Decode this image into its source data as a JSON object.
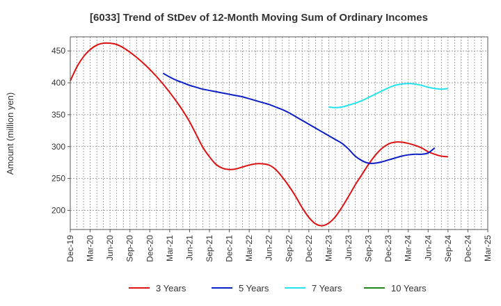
{
  "chart_data": {
    "type": "line",
    "title": "[6033]  Trend of StDev of 12-Month Moving Sum of Ordinary Incomes",
    "xlabel": "",
    "ylabel": "Amount (million yen)",
    "ylim": [
      170,
      472
    ],
    "yticks": [
      200,
      250,
      300,
      350,
      400,
      450
    ],
    "x_tick_labels": [
      "Dec-19",
      "Mar-20",
      "Jun-20",
      "Sep-20",
      "Dec-20",
      "Mar-21",
      "Jun-21",
      "Sep-21",
      "Dec-21",
      "Mar-22",
      "Jun-22",
      "Sep-22",
      "Dec-22",
      "Mar-23",
      "Jun-23",
      "Sep-23",
      "Dec-23",
      "Mar-24",
      "Jun-24",
      "Sep-24",
      "Dec-24",
      "Mar-25"
    ],
    "grid": true,
    "legend_position": "bottom",
    "series": [
      {
        "name": "3 Years",
        "color": "#dd1111",
        "start_index": 0,
        "values": [
          403,
          425,
          441,
          452,
          459,
          462,
          462,
          460,
          455,
          448,
          440,
          431,
          421,
          410,
          398,
          385,
          371,
          356,
          339,
          319,
          299,
          284,
          272,
          266,
          264,
          265,
          268,
          271,
          273,
          273,
          271,
          264,
          252,
          238,
          222,
          204,
          189,
          179,
          176,
          180,
          190,
          205,
          222,
          240,
          256,
          272,
          286,
          297,
          304,
          307,
          307,
          305,
          302,
          298,
          292,
          288,
          285,
          284
        ]
      },
      {
        "name": "5 Years",
        "color": "#0b1ec4",
        "start_index": 14,
        "values": [
          415,
          409,
          404,
          400,
          396,
          393,
          390,
          388,
          386,
          384,
          382,
          380,
          378,
          375,
          372,
          369,
          366,
          362,
          358,
          353,
          347,
          341,
          335,
          329,
          323,
          317,
          311,
          305,
          296,
          285,
          278,
          274,
          274,
          276,
          279,
          282,
          285,
          287,
          288,
          288,
          290,
          298
        ]
      },
      {
        "name": "7 Years",
        "color": "#22e4ee",
        "start_index": 39,
        "values": [
          362,
          361,
          362,
          365,
          368,
          372,
          377,
          382,
          387,
          392,
          396,
          398,
          399,
          398,
          396,
          393,
          391,
          390,
          391
        ]
      },
      {
        "name": "10 Years",
        "color": "#198a19",
        "start_index": 0,
        "values": []
      }
    ]
  }
}
